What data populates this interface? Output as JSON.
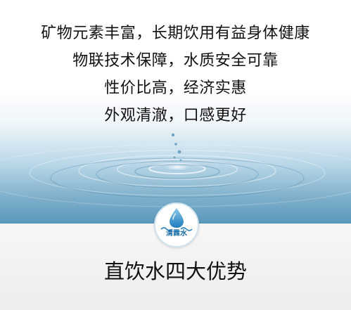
{
  "slogans": [
    "矿物元素丰富，长期饮用有益身体健康",
    "物联技术保障，水质安全可靠",
    "性价比高，经济实惠",
    "外观清澈，口感更好"
  ],
  "logo": {
    "text": "清霖水",
    "icon": "water-drop-icon"
  },
  "heading": "直饮水四大优势",
  "colors": {
    "water_light": "#e6f1f7",
    "water_mid": "#9fc6dc",
    "water_deep": "#4f8fb4",
    "logo_blue": "#1a6ea8",
    "text": "#111111"
  }
}
